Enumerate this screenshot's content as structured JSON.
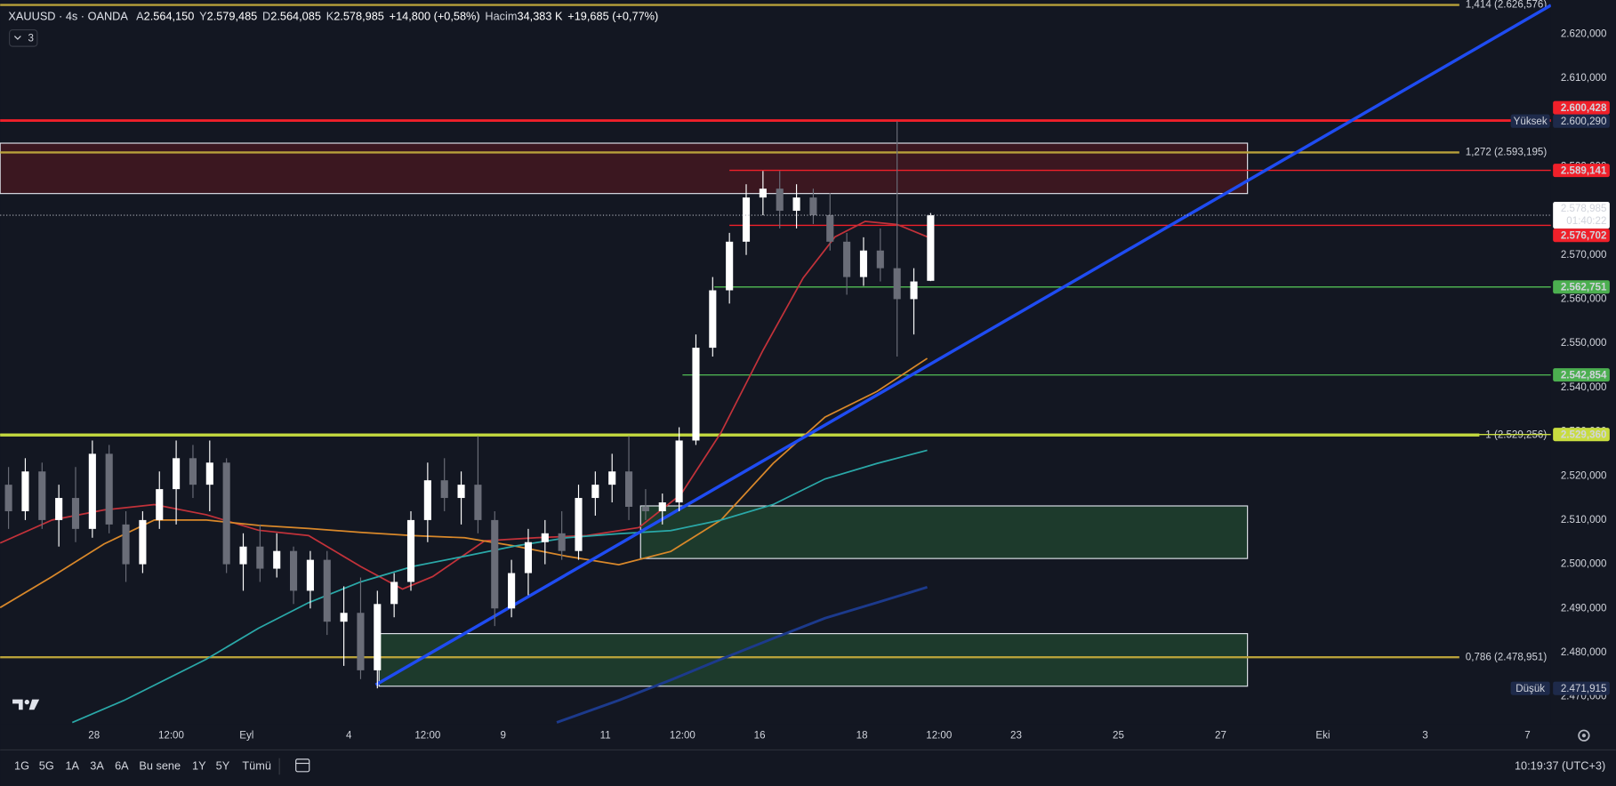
{
  "header": {
    "symbol": "XAUUSD · 4s · OANDA",
    "ohlc": [
      {
        "key": "A",
        "value": "2.564,150"
      },
      {
        "key": "Y",
        "value": "2.579,485"
      },
      {
        "key": "D",
        "value": "2.564,085"
      },
      {
        "key": "K",
        "value": "2.578,985"
      }
    ],
    "change": "+14,800 (+0,58%)",
    "volume_label": "Hacim",
    "volume": "34,383 K",
    "volume_change": "+19,685 (+0,77%)",
    "indicators_count": "3"
  },
  "chart_data": {
    "type": "candlestick",
    "up_color": "#ffffff",
    "down_color": "#6a6d78",
    "xlim": [
      -0.5,
      92
    ],
    "ylim": [
      2463.8,
      2627.7
    ],
    "yticks": [
      {
        "value": 2470,
        "label": "2.470,000"
      },
      {
        "value": 2480,
        "label": "2.480,000"
      },
      {
        "value": 2490,
        "label": "2.490,000"
      },
      {
        "value": 2500,
        "label": "2.500,000"
      },
      {
        "value": 2510,
        "label": "2.510,000"
      },
      {
        "value": 2520,
        "label": "2.520,000"
      },
      {
        "value": 2530,
        "label": "2.530,000"
      },
      {
        "value": 2540,
        "label": "2.540,000"
      },
      {
        "value": 2550,
        "label": "2.550,000"
      },
      {
        "value": 2560,
        "label": "2.560,000"
      },
      {
        "value": 2570,
        "label": "2.570,000"
      },
      {
        "value": 2580,
        "label": "2.580,000"
      },
      {
        "value": 2590,
        "label": "2.590,000"
      },
      {
        "value": 2600,
        "label": "2.600,000"
      },
      {
        "value": 2610,
        "label": "2.610,000"
      },
      {
        "value": 2620,
        "label": "2.620,000"
      }
    ],
    "xticks": [
      {
        "value": 5.1,
        "label": "28"
      },
      {
        "value": 9.7,
        "label": "12:00"
      },
      {
        "value": 14.2,
        "label": "Eyl"
      },
      {
        "value": 20.3,
        "label": "4"
      },
      {
        "value": 25,
        "label": "12:00"
      },
      {
        "value": 29.5,
        "label": "9"
      },
      {
        "value": 35.6,
        "label": "11"
      },
      {
        "value": 40.2,
        "label": "12:00"
      },
      {
        "value": 44.8,
        "label": "16"
      },
      {
        "value": 50.9,
        "label": "18"
      },
      {
        "value": 55.5,
        "label": "12:00"
      },
      {
        "value": 60.1,
        "label": "23"
      },
      {
        "value": 66.2,
        "label": "25"
      },
      {
        "value": 72.3,
        "label": "27"
      },
      {
        "value": 78.4,
        "label": "Eki"
      },
      {
        "value": 84.5,
        "label": "3"
      },
      {
        "value": 90.6,
        "label": "7"
      }
    ],
    "x": [
      0,
      1,
      2,
      3,
      4,
      5,
      6,
      7,
      8,
      9,
      10,
      11,
      12,
      13,
      14,
      15,
      16,
      17,
      18,
      19,
      20,
      21,
      22,
      23,
      24,
      25,
      26,
      27,
      28,
      29,
      30,
      31,
      32,
      33,
      34,
      35,
      36,
      37,
      38,
      39,
      40,
      41,
      42,
      43,
      44,
      45,
      46,
      47,
      48,
      49,
      50,
      51,
      52,
      53,
      54,
      55
    ],
    "open": [
      2518,
      2512,
      2521,
      2510,
      2515,
      2508,
      2525,
      2509,
      2500,
      2510,
      2517,
      2524,
      2518,
      2523,
      2500,
      2504,
      2499,
      2503,
      2494,
      2501,
      2487,
      2489,
      2476,
      2491,
      2496,
      2510,
      2519,
      2515,
      2518,
      2510,
      2490,
      2498,
      2505,
      2507,
      2503,
      2515,
      2518,
      2521,
      2513,
      2512,
      2514,
      2528,
      2549,
      2562,
      2573,
      2583,
      2585,
      2580,
      2583,
      2579,
      2573,
      2565,
      2571,
      2567,
      2560,
      2564.15
    ],
    "high": [
      2522,
      2524,
      2523,
      2518,
      2522,
      2528,
      2527,
      2512,
      2512,
      2521,
      2528,
      2527,
      2528,
      2524,
      2507,
      2509,
      2507,
      2504,
      2503,
      2503,
      2495,
      2497,
      2494,
      2498,
      2512,
      2523,
      2524,
      2521,
      2529,
      2512,
      2501,
      2508,
      2510,
      2512,
      2518,
      2521,
      2525,
      2529,
      2517,
      2516,
      2531,
      2552,
      2565,
      2575,
      2586,
      2589,
      2589,
      2586,
      2585,
      2584,
      2575,
      2574,
      2576,
      2600.29,
      2567,
      2579.485
    ],
    "low": [
      2508,
      2510,
      2508,
      2504,
      2505,
      2506,
      2507,
      2496,
      2498,
      2508,
      2509,
      2515,
      2512,
      2498,
      2494,
      2496,
      2497,
      2491,
      2490,
      2484,
      2477,
      2474,
      2471.915,
      2488,
      2494,
      2505,
      2512,
      2509,
      2507,
      2486,
      2488,
      2493,
      2500,
      2501,
      2501,
      2511,
      2514,
      2510,
      2510,
      2509,
      2512,
      2527,
      2547,
      2559,
      2570,
      2579,
      2576,
      2576,
      2577,
      2571,
      2561,
      2563,
      2564,
      2547,
      2552,
      2564.085
    ],
    "close": [
      2512,
      2521,
      2510,
      2515,
      2508,
      2525,
      2509,
      2500,
      2510,
      2517,
      2524,
      2518,
      2523,
      2500,
      2504,
      2499,
      2503,
      2494,
      2501,
      2487,
      2489,
      2476,
      2491,
      2496,
      2510,
      2519,
      2515,
      2518,
      2510,
      2490,
      2498,
      2505,
      2507,
      2503,
      2515,
      2518,
      2521,
      2513,
      2512,
      2514,
      2528,
      2549,
      2562,
      2573,
      2583,
      2585,
      2580,
      2583,
      2579,
      2573,
      2565,
      2571,
      2567,
      2560,
      2564,
      2578.985
    ],
    "moving_averages": [
      {
        "color": "#c2323a",
        "x": [
          -0.5,
          2.6,
          5.7,
          8.7,
          11.8,
          14.9,
          17.9,
          21,
          23.5,
          25.3,
          28.4,
          31.5,
          34.5,
          37.6,
          40.1,
          42.5,
          45,
          47.4,
          49.3,
          51.1,
          53,
          54.8
        ],
        "values": [
          2504.8,
          2510,
          2512.3,
          2513.5,
          2511.2,
          2507.7,
          2506.5,
          2499.5,
          2494.4,
          2497.2,
          2505.3,
          2506,
          2506.5,
          2508.3,
          2515.8,
          2529.8,
          2548.4,
          2564.8,
          2574.1,
          2577.6,
          2576.9,
          2574.1
        ]
      },
      {
        "color": "#d9882a",
        "x": [
          -0.5,
          2.6,
          5.7,
          8.7,
          11.8,
          14.9,
          17.9,
          21,
          24.1,
          27.2,
          30.2,
          33.3,
          36.4,
          39.5,
          42.5,
          45.6,
          48.7,
          51.8,
          54.8
        ],
        "values": [
          2490.2,
          2497.2,
          2504.6,
          2510,
          2510,
          2508.8,
          2508.1,
          2507.2,
          2506.5,
          2506,
          2504.1,
          2501.8,
          2499.9,
          2502.9,
          2510,
          2522.8,
          2533.3,
          2539.1,
          2546.6
        ]
      },
      {
        "color": "#2aa8a8",
        "x": [
          3.8,
          6.9,
          11.8,
          14.9,
          17.9,
          21,
          24.1,
          27.2,
          30.2,
          33.3,
          36.4,
          39.5,
          42.5,
          45.6,
          48.7,
          51.8,
          54.8
        ],
        "values": [
          2464.2,
          2469.2,
          2478.5,
          2485.5,
          2491.3,
          2496,
          2499.5,
          2501.8,
          2504.1,
          2506,
          2506.9,
          2507.6,
          2510,
          2513.5,
          2519.3,
          2522.8,
          2525.8
        ]
      },
      {
        "color": "#1c3a8c",
        "x": [
          32.7,
          36.4,
          39.5,
          42.5,
          45.6,
          48.7,
          51.8,
          54.8
        ],
        "values": [
          2464.2,
          2469.2,
          2473.8,
          2478.5,
          2483.2,
          2487.8,
          2491.3,
          2494.8
        ]
      }
    ],
    "trendline": {
      "color": "#1f4cf2",
      "x": [
        21.9,
        92
      ],
      "values": [
        2472.7,
        2626.5
      ]
    },
    "zones": [
      {
        "x": [
          -0.5,
          73.9
        ],
        "y": [
          2583.9,
          2595.3
        ],
        "color": "#3b1720"
      },
      {
        "x": [
          37.7,
          73.9
        ],
        "y": [
          2501.3,
          2513.2
        ],
        "color": "#1d3a2c"
      },
      {
        "x": [
          22.1,
          73.9
        ],
        "y": [
          2472.4,
          2484.3
        ],
        "color": "#1d3a2c"
      }
    ],
    "fib_levels": [
      {
        "value": 2626.576,
        "label": "1,414 (2.626,576)",
        "color": "#b8a13a"
      },
      {
        "value": 2593.195,
        "label": "1,272 (2.593,195)",
        "color": "#b8a13a"
      },
      {
        "value": 2529.256,
        "label": "1 (2.529,256)",
        "color": "#b9cf3e"
      },
      {
        "value": 2478.951,
        "label": "0,786 (2.478,951)",
        "color": "#b8a13a"
      }
    ],
    "levels": [
      {
        "value": 2600.428,
        "label": "2.600,428",
        "color": "#f0202a"
      },
      {
        "value": 2589.141,
        "label": "2.589,141",
        "color": "#f0202a",
        "from_x": 43
      },
      {
        "value": 2576.702,
        "label": "2.576,702",
        "color": "#f0202a",
        "from_x": 43
      },
      {
        "value": 2562.751,
        "label": "2.562,751",
        "color": "#4caf50",
        "from_x": 42.1
      },
      {
        "value": 2542.854,
        "label": "2.542,854",
        "color": "#4caf50",
        "from_x": 40.2
      },
      {
        "value": 2529.36,
        "label": "2.529,360",
        "color": "#c8dc40"
      }
    ],
    "current_price": {
      "value": 2578.985,
      "label": "2.578,985",
      "countdown": "01:40:22"
    },
    "extremes": [
      {
        "key": "Yüksek",
        "value": 2600.29,
        "label": "2.600,290"
      },
      {
        "key": "Düşük",
        "value": 2471.915,
        "label": "2.471,915"
      }
    ]
  },
  "toolbar": {
    "ranges": [
      "1G",
      "5G",
      "1A",
      "3A",
      "6A",
      "Bu sene",
      "1Y",
      "5Y",
      "Tümü"
    ],
    "clock": "10:19:37 (UTC+3)"
  }
}
